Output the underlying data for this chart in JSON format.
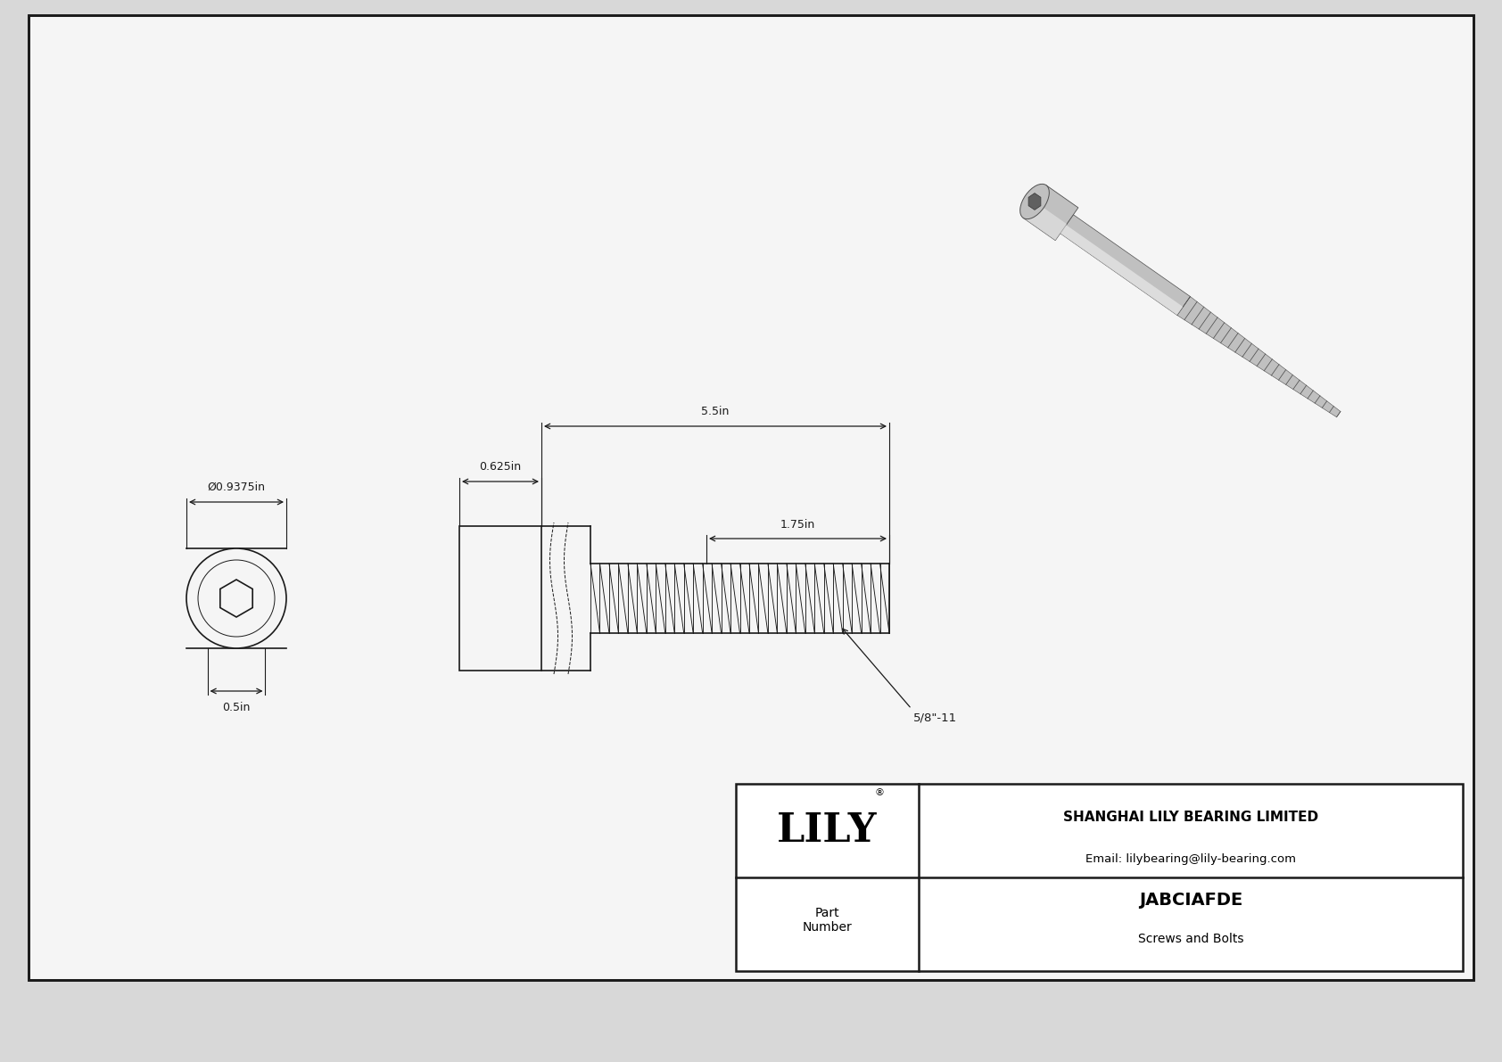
{
  "bg_color": "#d8d8d8",
  "drawing_bg": "#f5f5f5",
  "line_color": "#1a1a1a",
  "dim_diameter": "Ø0.9375in",
  "dim_head_width": "0.625in",
  "dim_total_length": "5.5in",
  "dim_thread_length": "1.75in",
  "dim_socket_depth": "0.5in",
  "dim_thread_label": "5/8\"-11",
  "company": "SHANGHAI LILY BEARING LIMITED",
  "email": "Email: lilybearing@lily-bearing.com",
  "part_label": "Part\nNumber",
  "part_number": "JABCIAFDE",
  "part_type": "Screws and Bolts",
  "lily_logo": "LILY"
}
